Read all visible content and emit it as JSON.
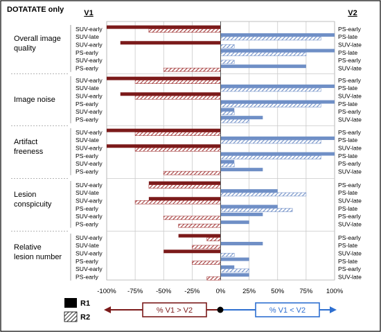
{
  "title": "DOTATATE only",
  "v1_label": "V1",
  "v2_label": "V2",
  "legend": {
    "r1": "R1",
    "r2": "R2",
    "left_box": "% V1 > V2",
    "right_box": "% V1 < V2"
  },
  "colors": {
    "r1": "#7b1a1a",
    "r2": "#a33a3a",
    "r1_pos": "#6f8fc6",
    "r2_pos": "#7c98cc",
    "left_arrow": "#7b1a1a",
    "right_arrow": "#2e6fd0"
  },
  "chart_data": {
    "type": "bar",
    "orientation": "horizontal",
    "xlim": [
      -100,
      100
    ],
    "xticks": [
      "-100%",
      "-75%",
      "-50%",
      "-25%",
      "0%",
      "25%",
      "50%",
      "75%",
      "100%"
    ],
    "grid": true,
    "series_names": [
      "R1",
      "R2"
    ],
    "groups": [
      {
        "name": "Overall image quality",
        "rows": [
          {
            "v1": "SUV-early",
            "v2": "PS-early",
            "r1": -100,
            "r2": -63
          },
          {
            "v1": "SUV-late",
            "v2": "PS-late",
            "r1": 100,
            "r2": 88
          },
          {
            "v1": "SUV-early",
            "v2": "SUV-late",
            "r1": -88,
            "r2": 12
          },
          {
            "v1": "PS-early",
            "v2": "PS-late",
            "r1": 100,
            "r2": 75
          },
          {
            "v1": "SUV-early",
            "v2": "PS-early",
            "r1": 0,
            "r2": 12
          },
          {
            "v1": "PS-early",
            "v2": "SUV-late",
            "r1": 75,
            "r2": -50
          }
        ]
      },
      {
        "name": "Image noise",
        "rows": [
          {
            "v1": "SUV-early",
            "v2": "PS-early",
            "r1": -100,
            "r2": -75
          },
          {
            "v1": "SUV-late",
            "v2": "PS-late",
            "r1": 100,
            "r2": 88
          },
          {
            "v1": "SUV-early",
            "v2": "SUV-late",
            "r1": -88,
            "r2": -75
          },
          {
            "v1": "PS-early",
            "v2": "PS-late",
            "r1": 100,
            "r2": 88
          },
          {
            "v1": "SUV-early",
            "v2": "PS-early",
            "r1": 12,
            "r2": 12
          },
          {
            "v1": "PS-early",
            "v2": "SUV-late",
            "r1": 37,
            "r2": 25
          }
        ]
      },
      {
        "name": "Artifact freeness",
        "rows": [
          {
            "v1": "SUV-early",
            "v2": "PS-early",
            "r1": -100,
            "r2": -75
          },
          {
            "v1": "SUV-late",
            "v2": "PS-late",
            "r1": 100,
            "r2": 88
          },
          {
            "v1": "SUV-early",
            "v2": "SUV-late",
            "r1": -100,
            "r2": -75
          },
          {
            "v1": "PS-early",
            "v2": "PS-late",
            "r1": 100,
            "r2": 88
          },
          {
            "v1": "SUV-early",
            "v2": "PS-early",
            "r1": 12,
            "r2": 12
          },
          {
            "v1": "PS-early",
            "v2": "SUV-late",
            "r1": 37,
            "r2": -50
          }
        ]
      },
      {
        "name": "Lesion conspicuity",
        "rows": [
          {
            "v1": "SUV-early",
            "v2": "PS-early",
            "r1": -63,
            "r2": -63
          },
          {
            "v1": "SUV-late",
            "v2": "PS-late",
            "r1": 50,
            "r2": 75
          },
          {
            "v1": "SUV-early",
            "v2": "SUV-late",
            "r1": -63,
            "r2": -75
          },
          {
            "v1": "PS-early",
            "v2": "PS-late",
            "r1": 50,
            "r2": 63
          },
          {
            "v1": "SUV-early",
            "v2": "PS-early",
            "r1": 37,
            "r2": -50
          },
          {
            "v1": "PS-early",
            "v2": "SUV-late",
            "r1": 25,
            "r2": -37
          }
        ]
      },
      {
        "name": "Relative lesion number",
        "rows": [
          {
            "v1": "SUV-early",
            "v2": "PS-early",
            "r1": -37,
            "r2": -12
          },
          {
            "v1": "SUV-late",
            "v2": "PS-late",
            "r1": 37,
            "r2": -25
          },
          {
            "v1": "SUV-early",
            "v2": "SUV-late",
            "r1": -50,
            "r2": 12
          },
          {
            "v1": "PS-early",
            "v2": "PS-late",
            "r1": 25,
            "r2": -25
          },
          {
            "v1": "SUV-early",
            "v2": "PS-early",
            "r1": 12,
            "r2": 25
          },
          {
            "v1": "PS-early",
            "v2": "SUV-late",
            "r1": 25,
            "r2": -12
          }
        ]
      }
    ]
  }
}
